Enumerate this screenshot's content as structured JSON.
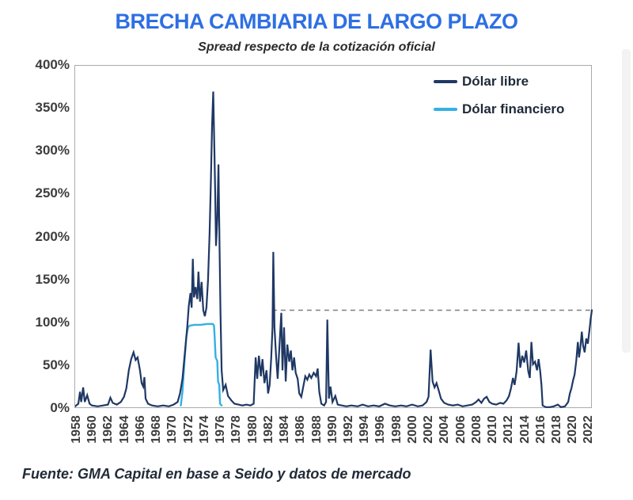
{
  "title": "BRECHA CAMBIARIA DE LARGO PLAZO",
  "subtitle": "Spread respecto de la cotización oficial",
  "footer": "Fuente: GMA Capital en base a Seido y datos de mercado",
  "colors": {
    "title_blue": "#2e6fe3",
    "libre_navy": "#1f3864",
    "financiero_cyan": "#33b1e4",
    "reference_gray": "#7f7f7f",
    "plot_border": "#aaaaaa"
  },
  "legend": {
    "items": [
      {
        "label": "Dólar libre",
        "color": "#1f3864"
      },
      {
        "label": "Dólar financiero",
        "color": "#33b1e4"
      }
    ]
  },
  "chart_data": {
    "type": "line",
    "title": "BRECHA CAMBIARIA DE LARGO PLAZO",
    "subtitle": "Spread respecto de la cotización oficial",
    "xlabel": "",
    "ylabel": "",
    "grid": false,
    "legend_position": "top-right",
    "y_unit": "%",
    "y_range": [
      0,
      400
    ],
    "y_ticks": [
      "400%",
      "350%",
      "300%",
      "250%",
      "200%",
      "150%",
      "100%",
      "50%",
      "0%"
    ],
    "x_range": [
      1957.7,
      2022.35
    ],
    "x_ticks": [
      "1958",
      "1960",
      "1962",
      "1964",
      "1966",
      "1968",
      "1970",
      "1972",
      "1974",
      "1976",
      "1978",
      "1980",
      "1982",
      "1984",
      "1986",
      "1988",
      "1990",
      "1992",
      "1994",
      "1996",
      "1998",
      "2000",
      "2002",
      "2004",
      "2006",
      "2008",
      "2010",
      "2012",
      "2014",
      "2016",
      "2018",
      "2020",
      "2022"
    ],
    "reference_line": {
      "value": 115,
      "from": 1982.3,
      "to": 2022.35,
      "style": "dashed",
      "color": "#7f7f7f"
    },
    "series": [
      {
        "name": "Dólar financiero",
        "color": "#33b1e4",
        "width": 2.4,
        "points": [
          [
            1970.9,
            4
          ],
          [
            1971.1,
            20
          ],
          [
            1971.35,
            55
          ],
          [
            1971.6,
            85
          ],
          [
            1971.8,
            95
          ],
          [
            1972.0,
            97
          ],
          [
            1972.6,
            98
          ],
          [
            1973.4,
            98
          ],
          [
            1974.2,
            99
          ],
          [
            1974.9,
            99
          ],
          [
            1975.05,
            97
          ],
          [
            1975.15,
            80
          ],
          [
            1975.25,
            60
          ],
          [
            1975.45,
            56
          ],
          [
            1975.55,
            32
          ],
          [
            1975.7,
            28
          ],
          [
            1975.8,
            6
          ],
          [
            1976.0,
            4
          ]
        ]
      },
      {
        "name": "Dólar libre",
        "color": "#1f3864",
        "width": 2.2,
        "points": [
          [
            1957.7,
            3
          ],
          [
            1958.1,
            6
          ],
          [
            1958.3,
            20
          ],
          [
            1958.45,
            8
          ],
          [
            1958.7,
            25
          ],
          [
            1958.9,
            8
          ],
          [
            1959.2,
            16
          ],
          [
            1959.5,
            6
          ],
          [
            1959.8,
            4
          ],
          [
            1960.5,
            3
          ],
          [
            1961.2,
            4
          ],
          [
            1961.8,
            5
          ],
          [
            1962.1,
            13
          ],
          [
            1962.4,
            7
          ],
          [
            1962.9,
            5
          ],
          [
            1963.4,
            8
          ],
          [
            1963.8,
            14
          ],
          [
            1964.1,
            24
          ],
          [
            1964.4,
            45
          ],
          [
            1964.7,
            58
          ],
          [
            1965.0,
            66
          ],
          [
            1965.25,
            57
          ],
          [
            1965.5,
            60
          ],
          [
            1965.8,
            45
          ],
          [
            1966.0,
            30
          ],
          [
            1966.2,
            26
          ],
          [
            1966.35,
            37
          ],
          [
            1966.5,
            12
          ],
          [
            1966.8,
            6
          ],
          [
            1967.3,
            4
          ],
          [
            1968.0,
            3
          ],
          [
            1968.7,
            4
          ],
          [
            1969.4,
            3
          ],
          [
            1970.0,
            5
          ],
          [
            1970.5,
            8
          ],
          [
            1970.8,
            18
          ],
          [
            1971.1,
            35
          ],
          [
            1971.4,
            65
          ],
          [
            1971.7,
            95
          ],
          [
            1971.9,
            120
          ],
          [
            1972.1,
            135
          ],
          [
            1972.25,
            118
          ],
          [
            1972.4,
            175
          ],
          [
            1972.55,
            130
          ],
          [
            1972.75,
            142
          ],
          [
            1972.95,
            128
          ],
          [
            1973.1,
            160
          ],
          [
            1973.3,
            125
          ],
          [
            1973.5,
            148
          ],
          [
            1973.7,
            115
          ],
          [
            1973.9,
            108
          ],
          [
            1974.1,
            118
          ],
          [
            1974.3,
            150
          ],
          [
            1974.5,
            205
          ],
          [
            1974.65,
            265
          ],
          [
            1974.8,
            330
          ],
          [
            1974.95,
            370
          ],
          [
            1975.1,
            300
          ],
          [
            1975.2,
            250
          ],
          [
            1975.3,
            190
          ],
          [
            1975.45,
            220
          ],
          [
            1975.6,
            285
          ],
          [
            1975.75,
            180
          ],
          [
            1975.85,
            115
          ],
          [
            1976.0,
            45
          ],
          [
            1976.2,
            22
          ],
          [
            1976.5,
            28
          ],
          [
            1976.8,
            15
          ],
          [
            1977.2,
            10
          ],
          [
            1977.6,
            6
          ],
          [
            1978.1,
            5
          ],
          [
            1978.6,
            4
          ],
          [
            1979.1,
            5
          ],
          [
            1979.6,
            4
          ],
          [
            1980.0,
            6
          ],
          [
            1980.25,
            60
          ],
          [
            1980.45,
            35
          ],
          [
            1980.65,
            62
          ],
          [
            1980.9,
            38
          ],
          [
            1981.1,
            58
          ],
          [
            1981.35,
            30
          ],
          [
            1981.6,
            45
          ],
          [
            1981.8,
            18
          ],
          [
            1982.0,
            28
          ],
          [
            1982.2,
            60
          ],
          [
            1982.35,
            95
          ],
          [
            1982.45,
            183
          ],
          [
            1982.6,
            95
          ],
          [
            1982.8,
            62
          ],
          [
            1983.0,
            35
          ],
          [
            1983.2,
            70
          ],
          [
            1983.45,
            112
          ],
          [
            1983.6,
            45
          ],
          [
            1983.8,
            95
          ],
          [
            1984.0,
            32
          ],
          [
            1984.2,
            75
          ],
          [
            1984.45,
            55
          ],
          [
            1984.65,
            68
          ],
          [
            1984.85,
            45
          ],
          [
            1985.05,
            60
          ],
          [
            1985.25,
            42
          ],
          [
            1985.5,
            35
          ],
          [
            1985.7,
            18
          ],
          [
            1985.95,
            14
          ],
          [
            1986.2,
            26
          ],
          [
            1986.45,
            38
          ],
          [
            1986.7,
            34
          ],
          [
            1986.95,
            40
          ],
          [
            1987.2,
            36
          ],
          [
            1987.5,
            42
          ],
          [
            1987.8,
            38
          ],
          [
            1988.0,
            47
          ],
          [
            1988.2,
            20
          ],
          [
            1988.45,
            6
          ],
          [
            1988.8,
            4
          ],
          [
            1989.05,
            8
          ],
          [
            1989.2,
            104
          ],
          [
            1989.4,
            12
          ],
          [
            1989.6,
            26
          ],
          [
            1989.85,
            8
          ],
          [
            1990.2,
            15
          ],
          [
            1990.5,
            5
          ],
          [
            1991.0,
            4
          ],
          [
            1991.6,
            3
          ],
          [
            1992.2,
            4
          ],
          [
            1993.0,
            3
          ],
          [
            1993.6,
            5
          ],
          [
            1994.3,
            3
          ],
          [
            1995.0,
            4
          ],
          [
            1995.7,
            3
          ],
          [
            1996.4,
            6
          ],
          [
            1997.0,
            4
          ],
          [
            1997.7,
            3
          ],
          [
            1998.4,
            4
          ],
          [
            1999.1,
            3
          ],
          [
            1999.8,
            5
          ],
          [
            2000.5,
            3
          ],
          [
            2001.1,
            4
          ],
          [
            2001.6,
            8
          ],
          [
            2001.85,
            14
          ],
          [
            2002.1,
            69
          ],
          [
            2002.35,
            32
          ],
          [
            2002.6,
            25
          ],
          [
            2002.85,
            30
          ],
          [
            2003.1,
            22
          ],
          [
            2003.4,
            12
          ],
          [
            2003.8,
            7
          ],
          [
            2004.3,
            5
          ],
          [
            2004.9,
            4
          ],
          [
            2005.5,
            5
          ],
          [
            2006.1,
            3
          ],
          [
            2006.7,
            4
          ],
          [
            2007.3,
            5
          ],
          [
            2007.8,
            8
          ],
          [
            2008.1,
            11
          ],
          [
            2008.45,
            7
          ],
          [
            2008.8,
            12
          ],
          [
            2009.1,
            14
          ],
          [
            2009.45,
            8
          ],
          [
            2009.8,
            6
          ],
          [
            2010.3,
            5
          ],
          [
            2010.8,
            7
          ],
          [
            2011.2,
            6
          ],
          [
            2011.6,
            10
          ],
          [
            2011.9,
            15
          ],
          [
            2012.15,
            24
          ],
          [
            2012.4,
            36
          ],
          [
            2012.6,
            28
          ],
          [
            2012.85,
            44
          ],
          [
            2013.1,
            77
          ],
          [
            2013.3,
            48
          ],
          [
            2013.55,
            62
          ],
          [
            2013.8,
            54
          ],
          [
            2014.05,
            68
          ],
          [
            2014.3,
            44
          ],
          [
            2014.5,
            36
          ],
          [
            2014.7,
            78
          ],
          [
            2014.9,
            52
          ],
          [
            2015.15,
            55
          ],
          [
            2015.4,
            45
          ],
          [
            2015.6,
            58
          ],
          [
            2015.8,
            44
          ],
          [
            2015.95,
            28
          ],
          [
            2016.1,
            4
          ],
          [
            2016.5,
            2
          ],
          [
            2017.0,
            2
          ],
          [
            2017.5,
            3
          ],
          [
            2018.0,
            5
          ],
          [
            2018.4,
            2
          ],
          [
            2018.9,
            3
          ],
          [
            2019.3,
            8
          ],
          [
            2019.5,
            18
          ],
          [
            2019.7,
            24
          ],
          [
            2019.9,
            33
          ],
          [
            2020.1,
            40
          ],
          [
            2020.3,
            56
          ],
          [
            2020.5,
            78
          ],
          [
            2020.65,
            60
          ],
          [
            2020.8,
            70
          ],
          [
            2021.0,
            90
          ],
          [
            2021.15,
            74
          ],
          [
            2021.35,
            66
          ],
          [
            2021.55,
            82
          ],
          [
            2021.75,
            76
          ],
          [
            2021.95,
            92
          ],
          [
            2022.1,
            105
          ],
          [
            2022.25,
            115
          ]
        ]
      }
    ]
  }
}
